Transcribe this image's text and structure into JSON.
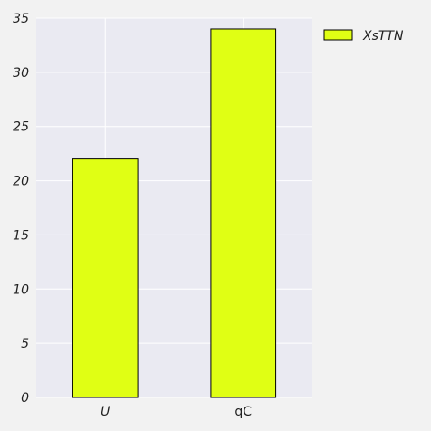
{
  "chart_data": {
    "type": "bar",
    "title": "",
    "xlabel": "",
    "ylabel": "",
    "categories": [
      "U",
      "qC"
    ],
    "series": [
      {
        "name": "XsTTN",
        "values": [
          22,
          34
        ]
      }
    ],
    "ylim": [
      0,
      35
    ],
    "yticks": [
      0,
      5,
      10,
      15,
      20,
      25,
      30,
      35
    ],
    "ytick_labels": [
      "0",
      "5",
      "10",
      "15",
      "20",
      "25",
      "30",
      "35"
    ],
    "grid": true,
    "legend_position": "top-right-outside",
    "colors": {
      "bar": "#e0ff14",
      "bar_edge": "#000000",
      "plot_bg": "#eaeaf2",
      "figure_bg": "#f2f2f2",
      "grid": "#ffffff",
      "text": "#222222"
    }
  }
}
